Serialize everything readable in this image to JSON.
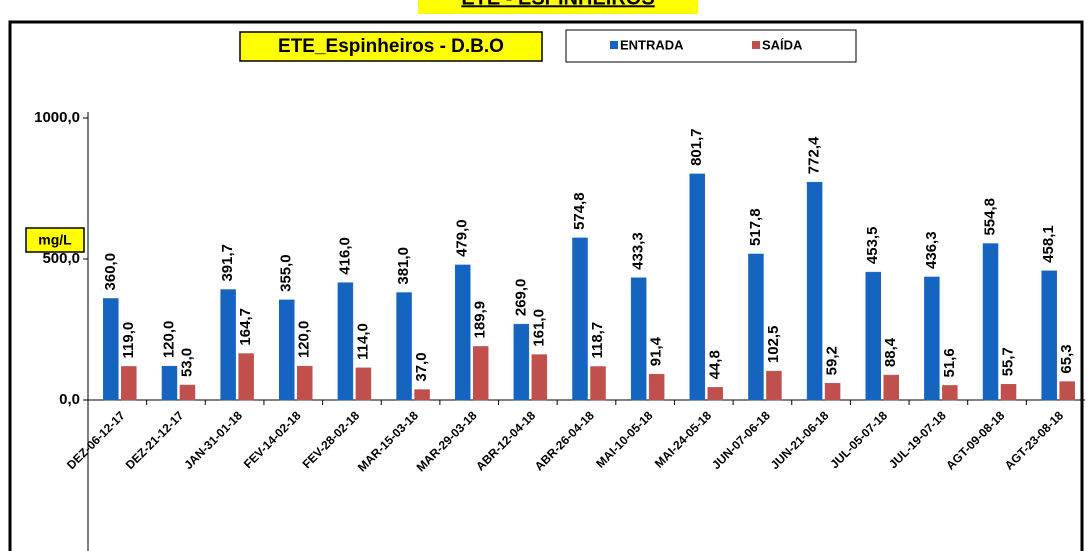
{
  "chart_data": {
    "type": "bar",
    "page_title": "ETE - ESPINHEIROS",
    "title": "ETE_Espinheiros - D.B.O",
    "y_label": "mg/L",
    "categories": [
      "DEZ-06-12-17",
      "DEZ-21-12-17",
      "JAN-31-01-18",
      "FEV-14-02-18",
      "FEV-28-02-18",
      "MAR-15-03-18",
      "MAR-29-03-18",
      "ABR-12-04-18",
      "ABR-26-04-18",
      "MAI-10-05-18",
      "MAI-24-05-18",
      "JUN-07-06-18",
      "JUN-21-06-18",
      "JUL-05-07-18",
      "JUL-19-07-18",
      "AGT-09-08-18",
      "AGT-23-08-18"
    ],
    "series": [
      {
        "name": "ENTRADA",
        "color": "#1565c0",
        "values": [
          360.0,
          120.0,
          391.7,
          355.0,
          416.0,
          381.0,
          479.0,
          269.0,
          574.8,
          433.3,
          801.7,
          517.8,
          772.4,
          453.5,
          436.3,
          554.8,
          458.1
        ],
        "value_labels": [
          "360,0",
          "120,0",
          "391,7",
          "355,0",
          "416,0",
          "381,0",
          "479,0",
          "269,0",
          "574,8",
          "433,3",
          "801,7",
          "517,8",
          "772,4",
          "453,5",
          "436,3",
          "554,8",
          "458,1"
        ]
      },
      {
        "name": "SAÍDA",
        "color": "#c0504d",
        "values": [
          119.0,
          53.0,
          164.7,
          120.0,
          114.0,
          37.0,
          189.9,
          161.0,
          118.7,
          91.4,
          44.8,
          102.5,
          59.2,
          88.4,
          51.6,
          55.7,
          65.3
        ],
        "value_labels": [
          "119,0",
          "53,0",
          "164,7",
          "120,0",
          "114,0",
          "37,0",
          "189,9",
          "161,0",
          "118,7",
          "91,4",
          "44,8",
          "102,5",
          "59,2",
          "88,4",
          "51,6",
          "55,7",
          "65,3"
        ]
      }
    ],
    "ylim": [
      0,
      1000
    ],
    "yticks": [
      {
        "value": 0,
        "label": "0,0"
      },
      {
        "value": 500,
        "label": "500,0"
      },
      {
        "value": 1000,
        "label": "1000,0"
      }
    ],
    "legend": "top"
  }
}
